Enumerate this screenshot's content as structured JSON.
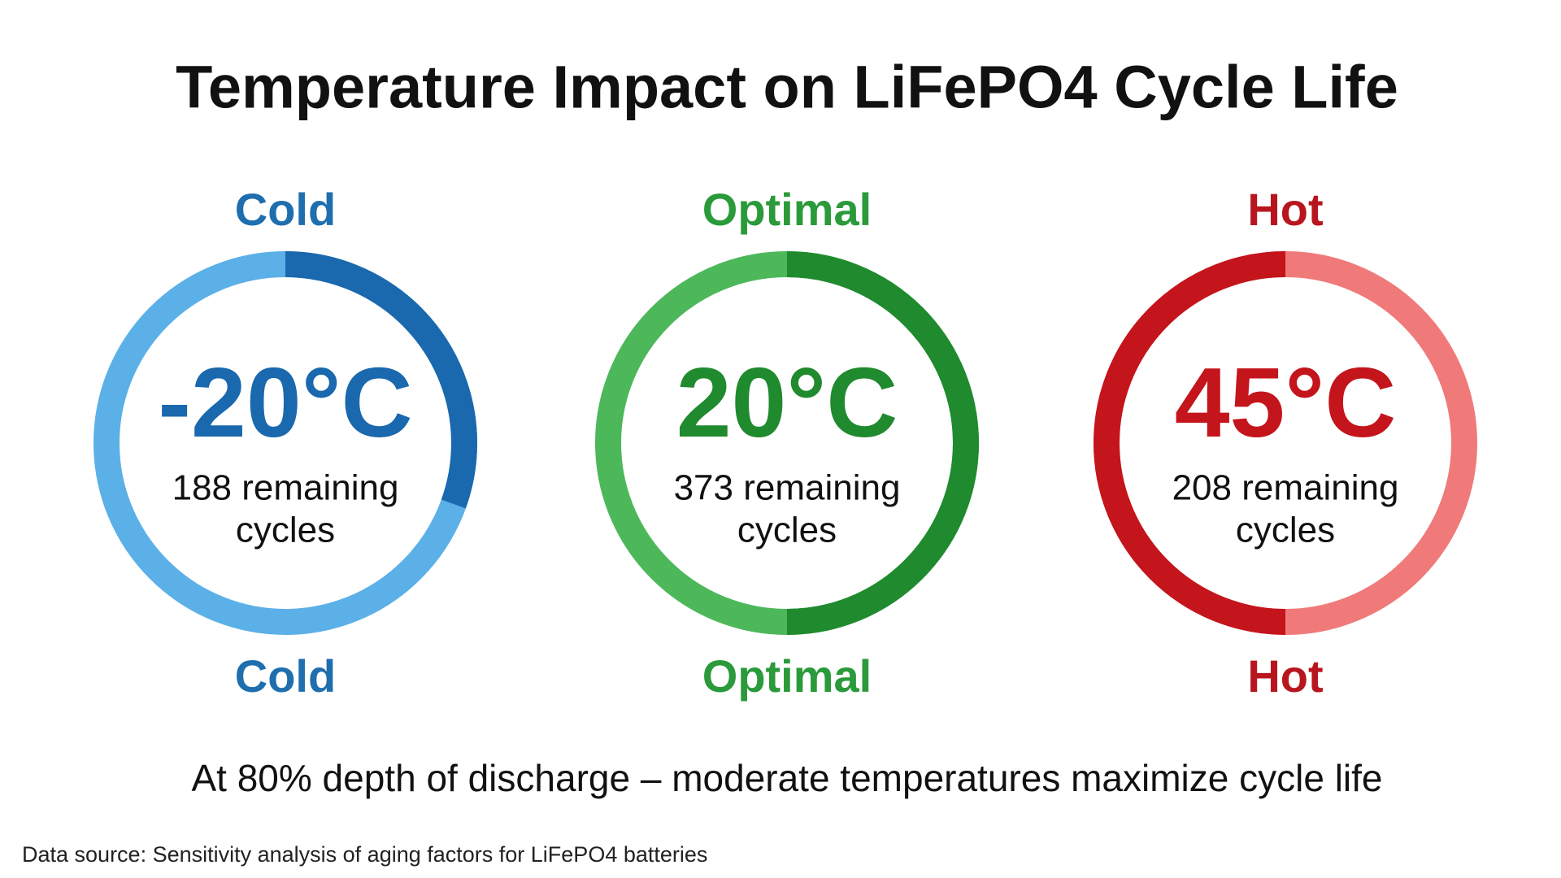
{
  "title": "Temperature Impact on LiFePO4 Cycle Life",
  "gauges": [
    {
      "label": "Cold",
      "temperature": "-20°C",
      "cycles_line": "188 remaining",
      "cycles_unit": "cycles"
    },
    {
      "label": "Optimal",
      "temperature": "20°C",
      "cycles_line": "373 remaining",
      "cycles_unit": "cycles"
    },
    {
      "label": "Hot",
      "temperature": "45°C",
      "cycles_line": "208 remaining",
      "cycles_unit": "cycles"
    }
  ],
  "subtitle": "At 80% depth of discharge – moderate temperatures maximize cycle life",
  "source": "Data source: Sensitivity analysis of aging factors for LiFePO4 batteries"
}
